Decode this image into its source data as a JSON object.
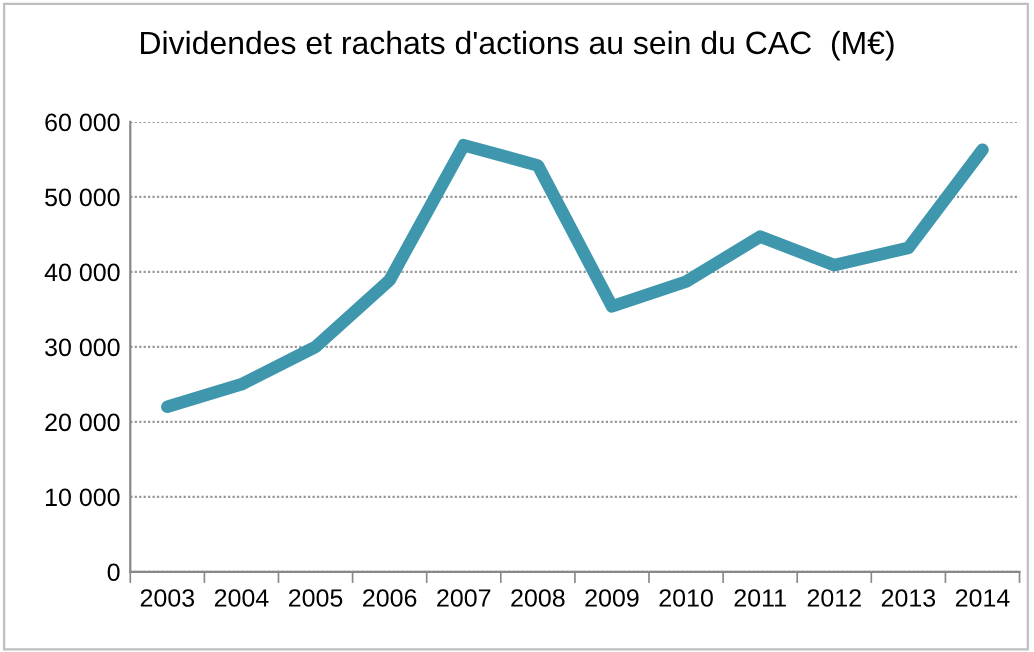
{
  "chart_data": {
    "type": "line",
    "title": "Dividendes et rachats d'actions au sein du CAC  (M€)",
    "categories": [
      "2003",
      "2004",
      "2005",
      "2006",
      "2007",
      "2008",
      "2009",
      "2010",
      "2011",
      "2012",
      "2013",
      "2014"
    ],
    "series": [
      {
        "color": "#3f97ae",
        "values": [
          22000,
          25000,
          30000,
          38900,
          56900,
          54200,
          35400,
          38700,
          44700,
          40900,
          43200,
          56300
        ]
      }
    ],
    "ylim": [
      0,
      60000
    ],
    "yticks": [
      0,
      {
        "value": 10000,
        "label": "10 000"
      },
      {
        "value": 20000,
        "label": "20 000"
      },
      {
        "value": 30000,
        "label": "30 000"
      },
      {
        "value": 40000,
        "label": "40 000"
      },
      {
        "value": 50000,
        "label": "50 000"
      },
      {
        "value": 60000,
        "label": "60 000"
      }
    ],
    "grid": "y",
    "legend": false,
    "marker": "none",
    "line_style": "solid"
  }
}
